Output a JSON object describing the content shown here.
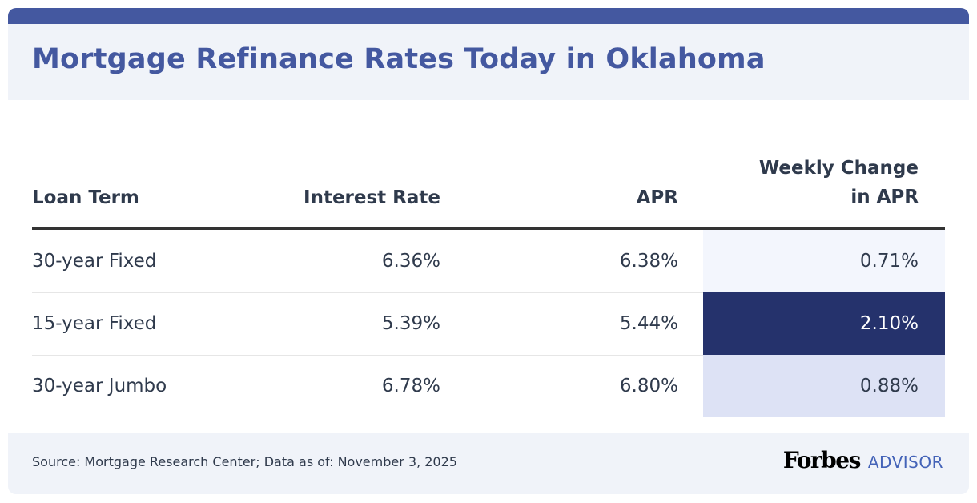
{
  "title": "Mortgage Refinance Rates Today in Oklahoma",
  "colors": {
    "brand": "#4458a0",
    "header_bg": "#f0f3f9",
    "high": "#25326c",
    "mid": "#dde2f5",
    "low": "#f3f6fd"
  },
  "table": {
    "headers": [
      "Loan Term",
      "Interest Rate",
      "APR",
      "Weekly Change",
      "in APR"
    ],
    "rows": [
      {
        "term": "30-year Fixed",
        "rate": "6.36%",
        "apr": "6.38%",
        "change": "0.71%"
      },
      {
        "term": "15-year Fixed",
        "rate": "5.39%",
        "apr": "5.44%",
        "change": "2.10%"
      },
      {
        "term": "30-year Jumbo",
        "rate": "6.78%",
        "apr": "6.80%",
        "change": "0.88%"
      }
    ]
  },
  "footer": {
    "source": "Source: Mortgage Research Center; Data as of: November 3, 2025",
    "logo_forbes": "Forbes",
    "logo_advisor": "ADVISOR"
  }
}
